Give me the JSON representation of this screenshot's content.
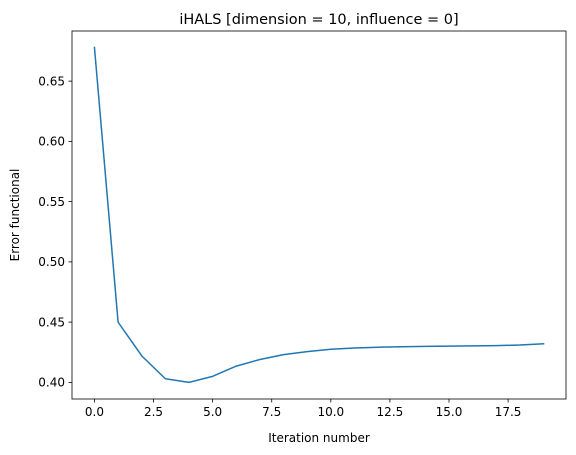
{
  "chart_data": {
    "type": "line",
    "title": "iHALS [dimension = 10, influence = 0]",
    "xlabel": "Iteration number",
    "ylabel": "Error functional",
    "xlim": [
      -0.95,
      19.95
    ],
    "ylim": [
      0.3862,
      0.6916
    ],
    "xticks": [
      0.0,
      2.5,
      5.0,
      7.5,
      10.0,
      12.5,
      15.0,
      17.5
    ],
    "xtick_labels": [
      "0.0",
      "2.5",
      "5.0",
      "7.5",
      "10.0",
      "12.5",
      "15.0",
      "17.5"
    ],
    "yticks": [
      0.4,
      0.45,
      0.5,
      0.55,
      0.6,
      0.65
    ],
    "ytick_labels": [
      "0.40",
      "0.45",
      "0.50",
      "0.55",
      "0.60",
      "0.65"
    ],
    "grid": false,
    "legend": "none",
    "series": [
      {
        "color": "#1f77b4",
        "x": [
          0,
          1,
          2,
          3,
          4,
          5,
          6,
          7,
          8,
          9,
          10,
          11,
          12,
          13,
          14,
          15,
          16,
          17,
          18,
          19
        ],
        "y": [
          0.678,
          0.45,
          0.422,
          0.403,
          0.4,
          0.405,
          0.4135,
          0.419,
          0.423,
          0.4255,
          0.4275,
          0.4285,
          0.4292,
          0.4296,
          0.4299,
          0.4301,
          0.4303,
          0.4305,
          0.431,
          0.432
        ]
      }
    ]
  }
}
